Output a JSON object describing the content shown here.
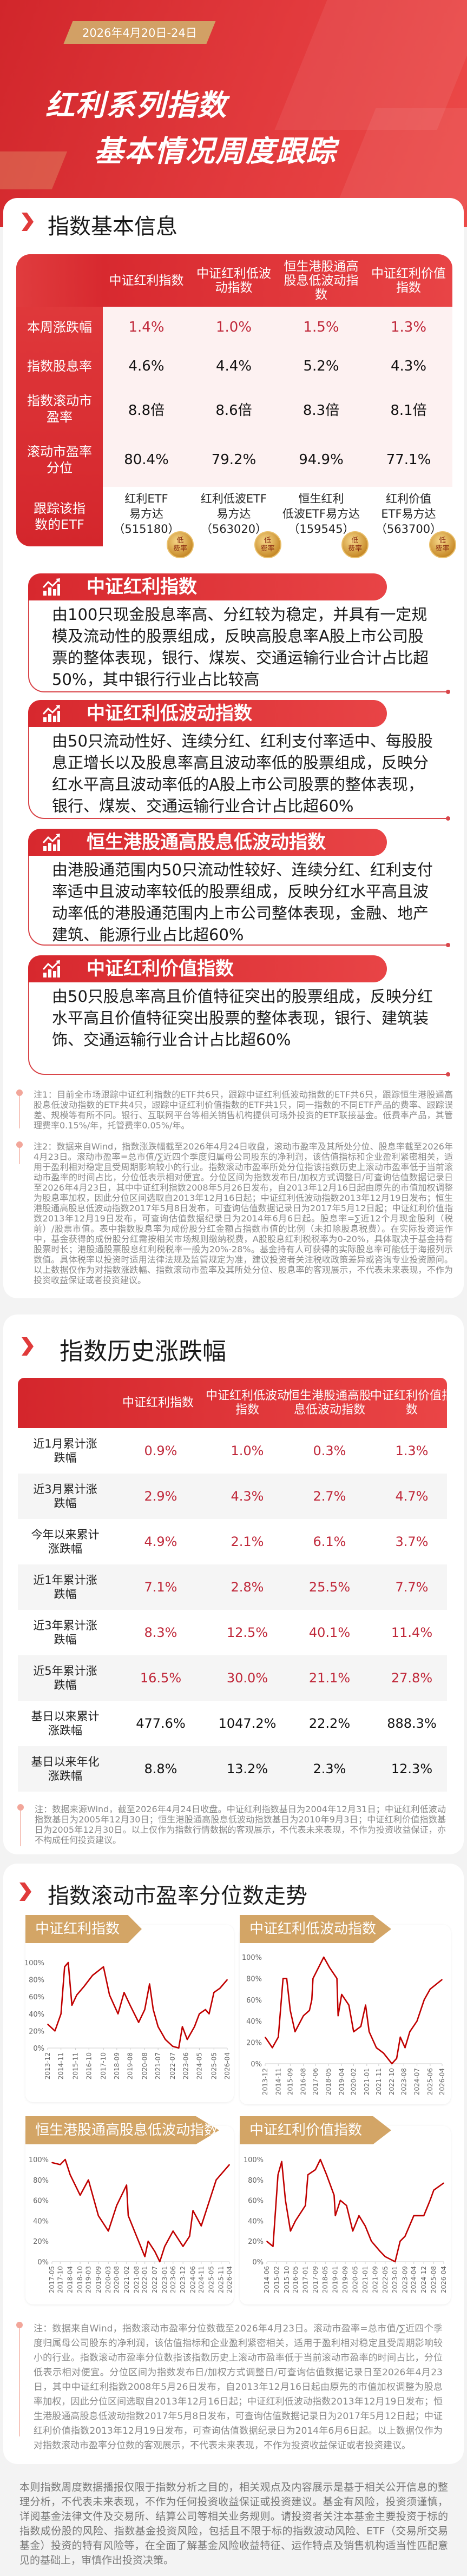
{
  "header": {
    "date": "2026年4月20日-24日",
    "title_line1": "红利系列指数",
    "title_line2": "基本情况周度跟踪"
  },
  "colors": {
    "brand_red": "#d7282e",
    "value_red": "#c0283a",
    "gold": "#d3a566",
    "line": "#c00000"
  },
  "section1": {
    "title": "指数基本信息",
    "table": {
      "columns": [
        "中证红利指数",
        "中证红利低波动指数",
        "恒生港股通高股息低波动指数",
        "中证红利价值指数"
      ],
      "rows": [
        {
          "label": "本周涨跌幅",
          "values": [
            "1.4%",
            "1.0%",
            "1.5%",
            "1.3%"
          ],
          "color": "red"
        },
        {
          "label": "指数股息率",
          "values": [
            "4.6%",
            "4.4%",
            "5.2%",
            "4.3%"
          ],
          "color": "black"
        },
        {
          "label": "指数滚动市盈率",
          "values": [
            "8.8倍",
            "8.6倍",
            "8.3倍",
            "8.1倍"
          ],
          "color": "black"
        },
        {
          "label": "滚动市盈率分位",
          "values": [
            "80.4%",
            "79.2%",
            "94.9%",
            "77.1%"
          ],
          "color": "black"
        }
      ],
      "etf_label": "跟踪该指数的ETF",
      "etfs": [
        {
          "l1": "红利ETF",
          "l2": "易方达",
          "l3": "（515180）"
        },
        {
          "l1": "红利低波ETF",
          "l2": "易方达",
          "l3": "（563020）"
        },
        {
          "l1": "恒生红利",
          "l2": "低波ETF易方达",
          "l3": "（159545）"
        },
        {
          "l1": "红利价值",
          "l2": "ETF易方达",
          "l3": "（563700）"
        }
      ],
      "badge": {
        "l1": "低",
        "l2": "费率",
        "icon": "seal-badge-icon"
      }
    },
    "descriptions": [
      {
        "title": "中证红利指数",
        "text": "由100只现金股息率高、分红较为稳定，并具有一定规模及流动性的股票组成，反映高股息率A股上市公司股票的整体表现，银行、煤炭、交通运输行业合计占比超50%，其中银行行业占比较高"
      },
      {
        "title": "中证红利低波动指数",
        "text": "由50只流动性好、连续分红、红利支付率适中、每股股息正增长以及股息率高且波动率低的股票组成，反映分红水平高且波动率低的A股上市公司股票的整体表现，银行、煤炭、交通运输行业合计占比超60%"
      },
      {
        "title": "恒生港股通高股息低波动指数",
        "text": "由港股通范围内50只流动性较好、连续分红、红利支付率适中且波动率较低的股票组成，反映分红水平高且波动率低的港股通范围内上市公司整体表现，金融、地产建筑、能源行业占比超60%"
      },
      {
        "title": "中证红利价值指数",
        "text": "由50只股息率高且价值特征突出的股票组成，反映分红水平高且价值特征突出股票的整体表现，银行、建筑装饰、交通运输行业合计占比超60%"
      }
    ],
    "note1": "注1：目前全市场跟踪中证红利指数的ETF共6只，跟踪中证红利低波动指数的ETF共6只，跟踪恒生港股通高股息低波动指数的ETF共4只，跟踪中证红利价值指数的ETF共1只，同一指数的不同ETF产品的费率、跟踪误差、规模等有所不同。银行、互联网平台等相关销售机构提供可场外投资的ETF联接基金。低费率产品，其管理费率0.15%/年，托管费率0.05%/年。",
    "note2": "注2：数据来自Wind，指数涨跌幅截至2026年4月24日收盘，滚动市盈率及其所处分位、股息率截至2026年4月23日。滚动市盈率=总市值/∑近四个季度归属母公司股东的净利润，该估值指标和企业盈利紧密相关，适用于盈利相对稳定且受周期影响较小的行业。指数滚动市盈率所处分位指该指数历史上滚动市盈率低于当前滚动市盈率的时间占比，分位低表示相对便宜。分位区间为指数发布日/加权方式调整日/可查询估值数据记录日至2026年4月23日，其中中证红利指数2008年5月26日发布，自2013年12月16日起由原先的市值加权调整为股息率加权，因此分位区间选取自2013年12月16日起；中证红利低波动指数2013年12月19日发布；恒生港股通高股息低波动指数2017年5月8日发布，可查询估值数据记录日为2017年5月12日起；中证红利价值指数2013年12月19日发布，可查询估值数据纪录日为2014年6月6日起。股息率=∑近12个月现金股利（税前）/股票市值。表中指数股息率为成份股分红金额占指数市值的比例（未扣除股息税费）。在实际投资运作中，基金获得的成份股分红需按相关市场规则缴纳税费，A股股息红利税税率为0-20%，具体取决于基金持有股票时长；港股通股票股息红利税税率一般为20%-28%。基金持有人可获得的实际股息率可能低于海报列示数值。具体税率以投资时适用法律法规及监管规定为准，建议投资者关注税收政策差异或咨询专业投资顾问。以上数据仅作为对指数涨跌幅、指数滚动市盈率及其所处分位、股息率的客观展示，不代表未来表现，不作为投资收益保证或者投资建议。"
  },
  "section2": {
    "title": "指数历史涨跌幅",
    "columns": [
      "中证红利指数",
      "中证红利低波动指数",
      "恒生港股通高股息低波动指数",
      "中证红利价值指数"
    ],
    "rows": [
      {
        "label": "近1月累计涨跌幅",
        "values": [
          "0.9%",
          "1.0%",
          "0.3%",
          "1.3%"
        ],
        "color": "red"
      },
      {
        "label": "近3月累计涨跌幅",
        "values": [
          "2.9%",
          "4.3%",
          "2.7%",
          "4.7%"
        ],
        "color": "red"
      },
      {
        "label": "今年以来累计涨跌幅",
        "values": [
          "4.9%",
          "2.1%",
          "6.1%",
          "3.7%"
        ],
        "color": "red"
      },
      {
        "label": "近1年累计涨跌幅",
        "values": [
          "7.1%",
          "2.8%",
          "25.5%",
          "7.7%"
        ],
        "color": "red"
      },
      {
        "label": "近3年累计涨跌幅",
        "values": [
          "8.3%",
          "12.5%",
          "40.1%",
          "11.4%"
        ],
        "color": "red"
      },
      {
        "label": "近5年累计涨跌幅",
        "values": [
          "16.5%",
          "30.0%",
          "21.1%",
          "27.8%"
        ],
        "color": "red"
      },
      {
        "label": "基日以来累计涨跌幅",
        "values": [
          "477.6%",
          "1047.2%",
          "22.2%",
          "888.3%"
        ],
        "color": "black"
      },
      {
        "label": "基日以来年化涨跌幅",
        "values": [
          "8.8%",
          "13.2%",
          "2.3%",
          "12.3%"
        ],
        "color": "black"
      }
    ],
    "note": "注：数据来源Wind，截至2026年4月24日收盘。中证红利指数基日为2004年12月31日；中证红利低波动指数基日为2005年12月30日；恒生港股通高股息低波动指数基日为2010年9月3日；中证红利价值指数基日为2005年12月30日。以上仅作为指数行情数据的客观展示，不代表未来表现，不作为投资收益保证，亦不构成任何投资建议。"
  },
  "section3": {
    "title": "指数滚动市盈率分位数走势",
    "note": "注：数据来自Wind，指数滚动市盈率分位数截至2026年4月23日。滚动市盈率=总市值/∑近四个季度归属母公司股东的净利润，该估值指标和企业盈利紧密相关，适用于盈利相对稳定且受周期影响较小的行业。指数滚动市盈率分位数指该指数历史上滚动市盈率低于当前滚动市盈率的时间占比，分位低表示相对便宜。分位区间为指数发布日/加权方式调整日/可查询估值数据记录日至2026年4月23日，其中中证红利指数2008年5月26日发布，自2013年12月16日起由原先的市值加权调整为股息率加权，因此分位区间选取自2013年12月16日起；中证红利低波动指数2013年12月19日发布；恒生港股通高股息低波动指数2017年5月8日发布，可查询估值数据记录日为2017年5月12日起；中证红利价值指数2013年12月19日发布，可查询估值数据纪录日为2014年6月6日起。以上数据仅作为对指数滚动市盈率分位数的客观展示，不代表未来表现，不作为投资收益保证或者投资建议。"
  },
  "chart_data": [
    {
      "type": "line",
      "title": "中证红利指数",
      "ylim": [
        0,
        100
      ],
      "yticks": [
        "0%",
        "20%",
        "40%",
        "60%",
        "80%",
        "100%"
      ],
      "grid": false,
      "xticks": [
        "2013-12",
        "2014-11",
        "2015-11",
        "2016-10",
        "2017-10",
        "2018-09",
        "2019-08",
        "2020-08",
        "2021-07",
        "2022-07",
        "2023-06",
        "2024-05",
        "2025-05",
        "2026-04"
      ],
      "x": [
        "2013-12",
        "2014-06",
        "2014-11",
        "2015-02",
        "2015-05",
        "2015-08",
        "2015-12",
        "2016-06",
        "2017-01",
        "2017-10",
        "2018-03",
        "2018-10",
        "2019-03",
        "2019-08",
        "2020-03",
        "2020-08",
        "2020-12",
        "2021-03",
        "2021-07",
        "2022-01",
        "2022-07",
        "2022-12",
        "2023-03",
        "2023-07",
        "2024-01",
        "2024-05",
        "2024-10",
        "2025-01",
        "2025-05",
        "2025-10",
        "2026-04"
      ],
      "y": [
        28,
        20,
        40,
        95,
        100,
        50,
        62,
        72,
        85,
        95,
        62,
        40,
        65,
        50,
        30,
        45,
        75,
        45,
        25,
        10,
        2,
        0,
        25,
        10,
        25,
        40,
        45,
        40,
        65,
        70,
        80
      ]
    },
    {
      "type": "line",
      "title": "中证红利低波动指数",
      "ylim": [
        0,
        100
      ],
      "yticks": [
        "0%",
        "20%",
        "40%",
        "60%",
        "80%",
        "100%"
      ],
      "grid": false,
      "xticks": [
        "2013-12",
        "2014-11",
        "2015-09",
        "2016-08",
        "2017-06",
        "2018-05",
        "2019-04",
        "2020-02",
        "2021-01",
        "2021-11",
        "2022-10",
        "2023-08",
        "2024-07",
        "2025-06",
        "2026-04"
      ],
      "x": [
        "2013-12",
        "2014-06",
        "2014-11",
        "2015-03",
        "2015-06",
        "2015-09",
        "2016-01",
        "2016-08",
        "2017-01",
        "2017-03",
        "2017-04",
        "2018-01",
        "2018-06",
        "2018-12",
        "2019-01",
        "2019-04",
        "2019-10",
        "2020-02",
        "2020-08",
        "2020-12",
        "2021-03",
        "2021-09",
        "2022-03",
        "2022-10",
        "2023-02",
        "2023-05",
        "2023-09",
        "2024-01",
        "2024-07",
        "2025-01",
        "2025-06",
        "2026-04"
      ],
      "y": [
        25,
        15,
        25,
        80,
        80,
        50,
        30,
        45,
        50,
        60,
        80,
        100,
        90,
        80,
        45,
        65,
        55,
        30,
        35,
        55,
        30,
        15,
        10,
        0,
        5,
        25,
        15,
        30,
        40,
        60,
        70,
        79
      ]
    },
    {
      "type": "line",
      "title": "恒生港股通高股息低波动指数",
      "ylim": [
        0,
        100
      ],
      "yticks": [
        "0%",
        "20%",
        "40%",
        "60%",
        "80%",
        "100%"
      ],
      "grid": false,
      "xticks": [
        "2017-05",
        "2017-10",
        "2018-04",
        "2018-10",
        "2019-03",
        "2019-09",
        "2020-03",
        "2020-08",
        "2021-02",
        "2021-08",
        "2022-01",
        "2022-07",
        "2023-01",
        "2023-06",
        "2023-12",
        "2024-06",
        "2024-11",
        "2025-05",
        "2025-11",
        "2026-04"
      ],
      "x": [
        "2017-05",
        "2017-10",
        "2018-01",
        "2018-04",
        "2018-10",
        "2019-03",
        "2019-09",
        "2020-03",
        "2020-08",
        "2021-02",
        "2021-03",
        "2021-08",
        "2022-01",
        "2022-03",
        "2022-07",
        "2022-10",
        "2023-01",
        "2023-06",
        "2023-12",
        "2024-04",
        "2024-06",
        "2024-11",
        "2025-02",
        "2025-05",
        "2025-08",
        "2026-04"
      ],
      "y": [
        97,
        95,
        100,
        85,
        65,
        80,
        45,
        30,
        55,
        75,
        45,
        25,
        5,
        20,
        10,
        0,
        15,
        30,
        15,
        25,
        50,
        35,
        50,
        65,
        80,
        95
      ]
    },
    {
      "type": "line",
      "title": "中证红利价值指数",
      "ylim": [
        0,
        100
      ],
      "yticks": [
        "0%",
        "20%",
        "40%",
        "60%",
        "80%",
        "100%"
      ],
      "grid": false,
      "xticks": [
        "2014-06",
        "2015-02",
        "2015-10",
        "2016-05",
        "2017-01",
        "2017-09",
        "2018-05",
        "2019-01",
        "2019-09",
        "2020-05",
        "2021-01",
        "2021-09",
        "2022-05",
        "2023-01",
        "2023-09",
        "2024-04",
        "2024-12",
        "2025-08",
        "2026-04"
      ],
      "x": [
        "2014-06",
        "2014-11",
        "2015-03",
        "2015-06",
        "2015-09",
        "2016-01",
        "2016-05",
        "2017-01",
        "2017-03",
        "2017-09",
        "2018-01",
        "2018-06",
        "2018-12",
        "2019-01",
        "2019-05",
        "2019-10",
        "2020-03",
        "2020-08",
        "2021-01",
        "2021-06",
        "2022-01",
        "2022-05",
        "2023-01",
        "2023-05",
        "2023-09",
        "2024-04",
        "2024-12",
        "2025-05",
        "2025-08",
        "2026-04"
      ],
      "y": [
        20,
        15,
        85,
        98,
        60,
        30,
        40,
        55,
        85,
        90,
        100,
        85,
        65,
        45,
        60,
        55,
        30,
        45,
        35,
        20,
        10,
        5,
        0,
        20,
        25,
        45,
        45,
        60,
        70,
        77
      ]
    }
  ],
  "disclaimer": "本则指数周度数据播报仅限于指数分析之目的，相关观点及内容展示是基于相关公开信息的整理分析，不代表未来表现，不作为任何投资收益保证或投资建议。基金有风险，投资须谨慎，详阅基金法律文件及交易所、结算公司等相关业务规则。请投资者关注本基金主要投资于标的指数成份股的风险、指数基金投资风险，包括且不限于标的指数波动风险、ETF（交易所交易基金）投资的特有风险等，在全面了解基金风险收益特征、运作特点及销售机构适当性匹配意见的基础上，审慎作出投资决策。"
}
